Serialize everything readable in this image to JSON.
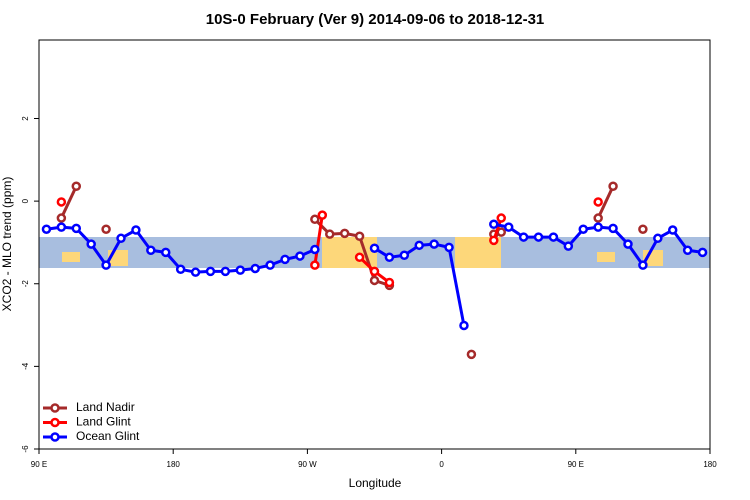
{
  "chart_data": {
    "type": "line",
    "title": "10S-0 February (Ver 9)   2014-09-06 to 2018-12-31",
    "x_label": "Longitude",
    "y_label": "XCO2 - MLO trend (ppm)",
    "xlim": [
      90,
      540
    ],
    "ylim": [
      -6,
      3.9
    ],
    "xticks": [
      {
        "value": 90,
        "label": "90 E"
      },
      180,
      {
        "value": 270,
        "label": "90 W"
      },
      {
        "value": 360,
        "label": "0"
      },
      {
        "value": 450,
        "label": "90 E"
      },
      {
        "value": 540,
        "label": "180"
      }
    ],
    "yticks": [
      -6,
      -4,
      -2,
      0,
      2
    ],
    "legend": "bottom-left",
    "series": [
      {
        "name": "Land Nadir",
        "color": "#a52a2a",
        "x": [
          105,
          115,
          125,
          135,
          145,
          275,
          285,
          295,
          305,
          315,
          325,
          350,
          380,
          390,
          395,
          400,
          430,
          465,
          475,
          485,
          495
        ],
        "values": [
          -0.41,
          0.36,
          null,
          -0.68,
          null,
          -0.44,
          -0.8,
          -0.78,
          -0.85,
          -1.92,
          -2.04,
          null,
          -3.71,
          null,
          -0.8,
          -0.75,
          null,
          -0.41,
          0.36,
          null,
          -0.68
        ]
      },
      {
        "name": "Land Glint",
        "color": "#ff0000",
        "x": [
          105,
          190,
          275,
          280,
          290,
          305,
          315,
          325,
          360,
          395,
          400,
          430,
          465
        ],
        "values": [
          -0.02,
          null,
          -1.55,
          -0.34,
          null,
          -1.36,
          -1.7,
          -1.97,
          null,
          -0.95,
          -0.41,
          null,
          -0.02
        ]
      },
      {
        "name": "Ocean Glint",
        "color": "#0000ff",
        "x": [
          95,
          105,
          115,
          125,
          135,
          145,
          155,
          165,
          175,
          185,
          195,
          205,
          215,
          225,
          235,
          245,
          255,
          265,
          275,
          295,
          315,
          325,
          335,
          345,
          355,
          365,
          375,
          385,
          395,
          405,
          415,
          425,
          435,
          445,
          455,
          465,
          475,
          485,
          495,
          505,
          515,
          525,
          535
        ],
        "values": [
          -0.68,
          -0.63,
          -0.66,
          -1.04,
          -1.55,
          -0.9,
          -0.7,
          -1.19,
          -1.24,
          -1.65,
          -1.72,
          -1.7,
          -1.7,
          -1.67,
          -1.63,
          -1.55,
          -1.41,
          -1.33,
          -1.17,
          null,
          -1.14,
          -1.36,
          -1.31,
          -1.07,
          -1.04,
          -1.12,
          -3.01,
          null,
          -0.56,
          -0.63,
          -0.87,
          -0.87,
          -0.87,
          -1.09,
          -0.68,
          -0.63,
          -0.66,
          -1.04,
          -1.55,
          -0.9,
          -0.7,
          -1.19,
          -1.24
        ]
      }
    ]
  }
}
